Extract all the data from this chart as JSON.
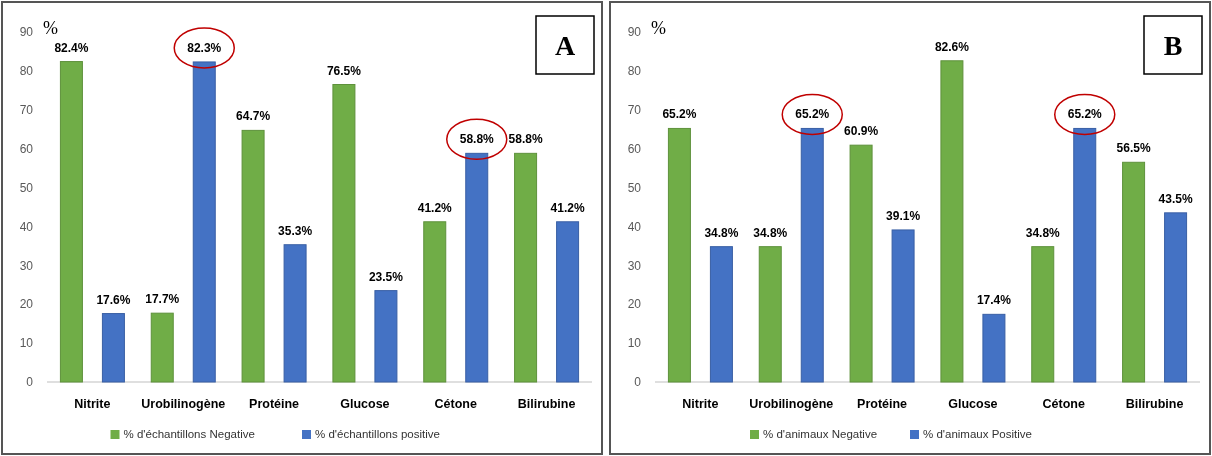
{
  "chart_data": [
    {
      "type": "bar",
      "ylabel": "%",
      "categories": [
        "Nitrite",
        "Urobilinogène",
        "Protéine",
        "Glucose",
        "Cétone",
        "Bilirubine"
      ],
      "ylim": [
        0,
        90
      ],
      "yticks": [
        0,
        10,
        20,
        30,
        40,
        50,
        60,
        70,
        80,
        90
      ],
      "grid": false,
      "legend": "bottom",
      "annotations": [
        "A"
      ],
      "series": [
        {
          "name": "% d'échantillons Negative",
          "color": "#70ad47",
          "values": [
            82.4,
            17.7,
            64.7,
            76.5,
            41.2,
            58.8
          ],
          "value_labels": [
            "82.4%",
            "17.7%",
            "64.7%",
            "76.5%",
            "41.2%",
            "58.8%"
          ]
        },
        {
          "name": "% d'échantillons positive",
          "color": "#4472c4",
          "values": [
            17.6,
            82.3,
            35.3,
            23.5,
            58.8,
            41.2
          ],
          "value_labels": [
            "17.6%",
            "82.3%",
            "35.3%",
            "23.5%",
            "58.8%",
            "41.2%"
          ]
        }
      ]
    },
    {
      "type": "bar",
      "ylabel": "%",
      "categories": [
        "Nitrite",
        "Urobilinogène",
        "Protéine",
        "Glucose",
        "Cétone",
        "Bilirubine"
      ],
      "ylim": [
        0,
        90
      ],
      "yticks": [
        0,
        10,
        20,
        30,
        40,
        50,
        60,
        70,
        80,
        90
      ],
      "grid": false,
      "legend": "bottom",
      "annotations": [
        "B"
      ],
      "series": [
        {
          "name": "% d'animaux Negative",
          "color": "#70ad47",
          "values": [
            65.2,
            34.8,
            60.9,
            82.6,
            34.8,
            56.5
          ],
          "value_labels": [
            "65.2%",
            "34.8%",
            "60.9%",
            "82.6%",
            "34.8%",
            "56.5%"
          ]
        },
        {
          "name": "% d'animaux Positive",
          "color": "#4472c4",
          "values": [
            34.8,
            65.2,
            39.1,
            17.4,
            65.2,
            43.5
          ],
          "value_labels": [
            "34.8%",
            "65.2%",
            "39.1%",
            "17.4%",
            "65.2%",
            "43.5%"
          ]
        }
      ]
    }
  ]
}
